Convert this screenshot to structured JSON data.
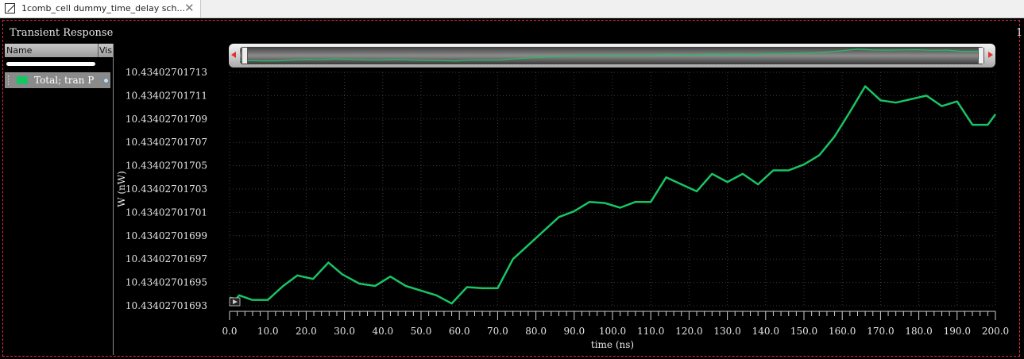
{
  "tab": {
    "title": "1comb_cell dummy_time_delay sch...",
    "close": "✕"
  },
  "panel": {
    "title": "Transient Response",
    "index": "1"
  },
  "legend": {
    "col_name": "Name",
    "col_vis": "Vis",
    "items": [
      {
        "label": "Total; tran P",
        "color": "#19c464"
      }
    ]
  },
  "chart_data": {
    "type": "line",
    "xlabel": "time (ns)",
    "ylabel": "W (nW)",
    "xlim": [
      0,
      200
    ],
    "ylim": [
      10.43402701693,
      10.43402701713
    ],
    "x_ticks": [
      "0.0",
      "10.0",
      "20.0",
      "30.0",
      "40.0",
      "50.0",
      "60.0",
      "70.0",
      "80.0",
      "90.0",
      "100.0",
      "110.0",
      "120.0",
      "130.0",
      "140.0",
      "150.0",
      "160.0",
      "170.0",
      "180.0",
      "190.0",
      "200.0"
    ],
    "y_ticks": [
      "10.43402701693",
      "10.43402701695",
      "10.43402701697",
      "10.43402701699",
      "10.43402701701",
      "10.43402701703",
      "10.43402701705",
      "10.43402701707",
      "10.43402701709",
      "10.43402701711",
      "10.43402701713"
    ],
    "grid": true,
    "series": [
      {
        "name": "Total; tran P",
        "color": "#19c464",
        "x": [
          0,
          1.7,
          2.5,
          5.9,
          10,
          14,
          17.7,
          21.8,
          25.8,
          29.4,
          33.9,
          38,
          42,
          46,
          50,
          54,
          58,
          62,
          66,
          70,
          74,
          78,
          82,
          86,
          90,
          94,
          98,
          102,
          106,
          110,
          114,
          118,
          122,
          126,
          130,
          134,
          138,
          142,
          146,
          150,
          154,
          158,
          162,
          166,
          170,
          174,
          178,
          182,
          186,
          190,
          194,
          198,
          200
        ],
        "y": [
          10.434027016937,
          10.434027016936,
          10.434027016939,
          10.434027016935,
          10.434027016935,
          10.434027016947,
          10.434027016956,
          10.434027016953,
          10.434027016967,
          10.434027016957,
          10.434027016949,
          10.434027016947,
          10.434027016955,
          10.434027016947,
          10.434027016943,
          10.434027016939,
          10.434027016932,
          10.434027016946,
          10.434027016945,
          10.434027016945,
          10.43402701697,
          10.434027016982,
          10.434027016994,
          10.434027017006,
          10.434027017011,
          10.434027017019,
          10.434027017018,
          10.434027017014,
          10.434027017019,
          10.434027017019,
          10.43402701704,
          10.434027017034,
          10.434027017028,
          10.434027017043,
          10.434027017036,
          10.434027017043,
          10.434027017034,
          10.434027017046,
          10.434027017046,
          10.434027017051,
          10.434027017059,
          10.434027017075,
          10.434027017096,
          10.434027017118,
          10.434027017106,
          10.434027017104,
          10.434027017107,
          10.43402701711,
          10.434027017101,
          10.434027017105,
          10.434027017085,
          10.434027017085,
          10.434027017094
        ]
      }
    ]
  }
}
